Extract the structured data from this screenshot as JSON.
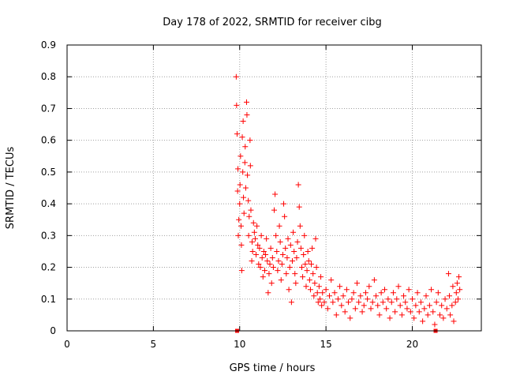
{
  "chart_data": {
    "type": "scatter",
    "title": "Day 178 of 2022, SRMTID for receiver cibg",
    "xlabel": "GPS time / hours",
    "ylabel": "SRMTID / TECUs",
    "xlim": [
      0,
      24
    ],
    "ylim": [
      0,
      0.9
    ],
    "xticks": [
      "0",
      "5",
      "10",
      "15",
      "20"
    ],
    "yticks": [
      "0",
      "0.1",
      "0.2",
      "0.3",
      "0.4",
      "0.5",
      "0.6",
      "0.7",
      "0.8",
      "0.9"
    ],
    "grid": true,
    "marker": "+",
    "color": "#ff0000",
    "series": [
      {
        "name": "SRMTID",
        "points": [
          [
            9.8,
            0.8
          ],
          [
            9.82,
            0.71
          ],
          [
            9.85,
            0.62
          ],
          [
            9.9,
            0.51
          ],
          [
            9.88,
            0.44
          ],
          [
            9.92,
            0.3
          ],
          [
            9.95,
            0.35
          ],
          [
            10.0,
            0.4
          ],
          [
            10.02,
            0.46
          ],
          [
            10.05,
            0.55
          ],
          [
            10.08,
            0.33
          ],
          [
            10.1,
            0.27
          ],
          [
            10.12,
            0.19
          ],
          [
            10.15,
            0.61
          ],
          [
            10.18,
            0.5
          ],
          [
            10.2,
            0.66
          ],
          [
            10.22,
            0.42
          ],
          [
            10.25,
            0.37
          ],
          [
            10.3,
            0.53
          ],
          [
            10.32,
            0.58
          ],
          [
            10.35,
            0.45
          ],
          [
            10.4,
            0.72
          ],
          [
            10.42,
            0.68
          ],
          [
            10.45,
            0.49
          ],
          [
            10.5,
            0.41
          ],
          [
            10.52,
            0.3
          ],
          [
            10.55,
            0.36
          ],
          [
            10.6,
            0.6
          ],
          [
            10.62,
            0.52
          ],
          [
            10.65,
            0.38
          ],
          [
            10.7,
            0.22
          ],
          [
            10.72,
            0.28
          ],
          [
            10.75,
            0.25
          ],
          [
            10.8,
            0.34
          ],
          [
            10.85,
            0.31
          ],
          [
            10.9,
            0.29
          ],
          [
            10.95,
            0.24
          ],
          [
            11.0,
            0.33
          ],
          [
            11.05,
            0.27
          ],
          [
            11.1,
            0.21
          ],
          [
            11.15,
            0.26
          ],
          [
            11.2,
            0.2
          ],
          [
            11.25,
            0.3
          ],
          [
            11.3,
            0.23
          ],
          [
            11.35,
            0.17
          ],
          [
            11.4,
            0.25
          ],
          [
            11.45,
            0.19
          ],
          [
            11.5,
            0.24
          ],
          [
            11.55,
            0.29
          ],
          [
            11.6,
            0.22
          ],
          [
            11.65,
            0.12
          ],
          [
            11.7,
            0.18
          ],
          [
            11.75,
            0.21
          ],
          [
            11.8,
            0.26
          ],
          [
            11.85,
            0.15
          ],
          [
            11.9,
            0.23
          ],
          [
            11.95,
            0.2
          ],
          [
            12.0,
            0.38
          ],
          [
            12.05,
            0.43
          ],
          [
            12.1,
            0.3
          ],
          [
            12.15,
            0.25
          ],
          [
            12.2,
            0.19
          ],
          [
            12.25,
            0.22
          ],
          [
            12.3,
            0.33
          ],
          [
            12.35,
            0.28
          ],
          [
            12.4,
            0.16
          ],
          [
            12.45,
            0.21
          ],
          [
            12.5,
            0.24
          ],
          [
            12.55,
            0.4
          ],
          [
            12.6,
            0.36
          ],
          [
            12.65,
            0.26
          ],
          [
            12.7,
            0.18
          ],
          [
            12.75,
            0.23
          ],
          [
            12.8,
            0.29
          ],
          [
            12.85,
            0.13
          ],
          [
            12.9,
            0.2
          ],
          [
            12.95,
            0.27
          ],
          [
            13.0,
            0.09
          ],
          [
            13.05,
            0.22
          ],
          [
            13.1,
            0.31
          ],
          [
            13.15,
            0.25
          ],
          [
            13.2,
            0.18
          ],
          [
            13.25,
            0.15
          ],
          [
            13.3,
            0.23
          ],
          [
            13.35,
            0.28
          ],
          [
            13.4,
            0.46
          ],
          [
            13.45,
            0.39
          ],
          [
            13.5,
            0.33
          ],
          [
            13.55,
            0.26
          ],
          [
            13.6,
            0.2
          ],
          [
            13.65,
            0.17
          ],
          [
            13.7,
            0.24
          ],
          [
            13.75,
            0.3
          ],
          [
            13.8,
            0.21
          ],
          [
            13.85,
            0.14
          ],
          [
            13.9,
            0.19
          ],
          [
            13.95,
            0.25
          ],
          [
            14.0,
            0.22
          ],
          [
            14.05,
            0.16
          ],
          [
            14.1,
            0.13
          ],
          [
            14.15,
            0.21
          ],
          [
            14.2,
            0.26
          ],
          [
            14.25,
            0.18
          ],
          [
            14.3,
            0.11
          ],
          [
            14.35,
            0.15
          ],
          [
            14.4,
            0.29
          ],
          [
            14.45,
            0.2
          ],
          [
            14.5,
            0.12
          ],
          [
            14.55,
            0.09
          ],
          [
            14.6,
            0.14
          ],
          [
            14.65,
            0.1
          ],
          [
            14.7,
            0.17
          ],
          [
            14.75,
            0.08
          ],
          [
            14.8,
            0.12
          ],
          [
            14.9,
            0.09
          ],
          [
            15.0,
            0.13
          ],
          [
            15.1,
            0.07
          ],
          [
            15.2,
            0.11
          ],
          [
            15.3,
            0.16
          ],
          [
            15.4,
            0.09
          ],
          [
            15.5,
            0.12
          ],
          [
            15.6,
            0.05
          ],
          [
            15.7,
            0.1
          ],
          [
            15.8,
            0.14
          ],
          [
            15.9,
            0.08
          ],
          [
            16.0,
            0.11
          ],
          [
            16.1,
            0.06
          ],
          [
            16.2,
            0.13
          ],
          [
            16.3,
            0.09
          ],
          [
            16.4,
            0.04
          ],
          [
            16.5,
            0.1
          ],
          [
            16.6,
            0.12
          ],
          [
            16.7,
            0.07
          ],
          [
            16.8,
            0.15
          ],
          [
            16.9,
            0.09
          ],
          [
            17.0,
            0.11
          ],
          [
            17.1,
            0.06
          ],
          [
            17.2,
            0.08
          ],
          [
            17.3,
            0.12
          ],
          [
            17.4,
            0.1
          ],
          [
            17.5,
            0.14
          ],
          [
            17.6,
            0.07
          ],
          [
            17.7,
            0.09
          ],
          [
            17.8,
            0.16
          ],
          [
            17.9,
            0.11
          ],
          [
            18.0,
            0.08
          ],
          [
            18.1,
            0.05
          ],
          [
            18.2,
            0.12
          ],
          [
            18.3,
            0.09
          ],
          [
            18.4,
            0.13
          ],
          [
            18.5,
            0.07
          ],
          [
            18.6,
            0.1
          ],
          [
            18.7,
            0.04
          ],
          [
            18.8,
            0.09
          ],
          [
            18.9,
            0.12
          ],
          [
            19.0,
            0.06
          ],
          [
            19.1,
            0.1
          ],
          [
            19.2,
            0.14
          ],
          [
            19.3,
            0.08
          ],
          [
            19.4,
            0.05
          ],
          [
            19.5,
            0.11
          ],
          [
            19.6,
            0.09
          ],
          [
            19.7,
            0.07
          ],
          [
            19.8,
            0.13
          ],
          [
            19.9,
            0.06
          ],
          [
            20.0,
            0.1
          ],
          [
            20.1,
            0.04
          ],
          [
            20.2,
            0.08
          ],
          [
            20.3,
            0.12
          ],
          [
            20.4,
            0.06
          ],
          [
            20.5,
            0.09
          ],
          [
            20.6,
            0.03
          ],
          [
            20.7,
            0.07
          ],
          [
            20.8,
            0.11
          ],
          [
            20.9,
            0.05
          ],
          [
            21.0,
            0.08
          ],
          [
            21.1,
            0.13
          ],
          [
            21.2,
            0.06
          ],
          [
            21.3,
            0.02
          ],
          [
            21.4,
            0.09
          ],
          [
            21.5,
            0.12
          ],
          [
            21.6,
            0.05
          ],
          [
            21.7,
            0.08
          ],
          [
            21.8,
            0.04
          ],
          [
            21.9,
            0.1
          ],
          [
            22.0,
            0.07
          ],
          [
            22.1,
            0.18
          ],
          [
            22.15,
            0.11
          ],
          [
            22.2,
            0.05
          ],
          [
            22.3,
            0.08
          ],
          [
            22.35,
            0.14
          ],
          [
            22.4,
            0.03
          ],
          [
            22.5,
            0.09
          ],
          [
            22.55,
            0.12
          ],
          [
            22.6,
            0.15
          ],
          [
            22.65,
            0.1
          ],
          [
            22.7,
            0.17
          ],
          [
            22.75,
            0.13
          ]
        ]
      }
    ],
    "gap_markers": [
      [
        9.85,
        0.0
      ],
      [
        21.35,
        0.0
      ]
    ]
  }
}
